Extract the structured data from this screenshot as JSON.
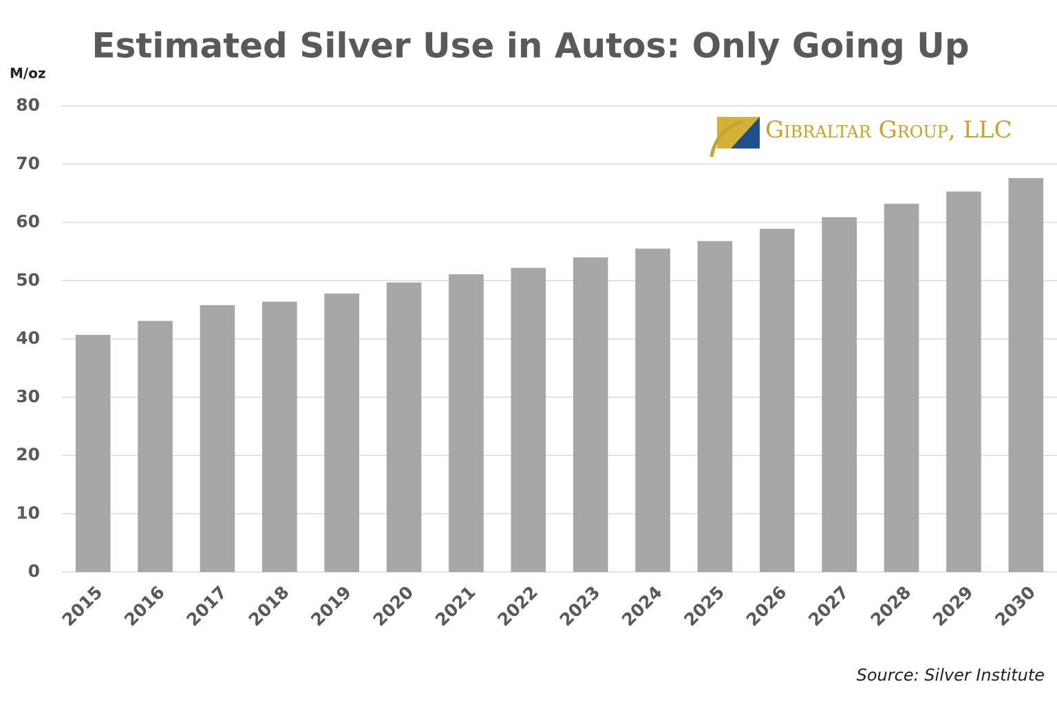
{
  "chart_data": {
    "type": "bar",
    "title": "Estimated Silver Use in Autos: Only Going Up",
    "y_label": "M/oz",
    "source": "Source: Silver Institute",
    "logo_text": "Gibraltar Group, LLC",
    "categories": [
      "2015",
      "2016",
      "2017",
      "2018",
      "2019",
      "2020",
      "2021",
      "2022",
      "2023",
      "2024",
      "2025",
      "2026",
      "2027",
      "2028",
      "2029",
      "2030"
    ],
    "values": [
      40.7,
      43.1,
      45.8,
      46.4,
      47.8,
      49.7,
      51.1,
      52.2,
      54.0,
      55.5,
      56.8,
      58.9,
      60.9,
      63.2,
      65.3,
      67.6
    ],
    "color": "#a6a6a6",
    "ylim": [
      0,
      80
    ],
    "yticks": [
      0,
      10,
      20,
      30,
      40,
      50,
      60,
      70,
      80
    ],
    "grid": true
  }
}
